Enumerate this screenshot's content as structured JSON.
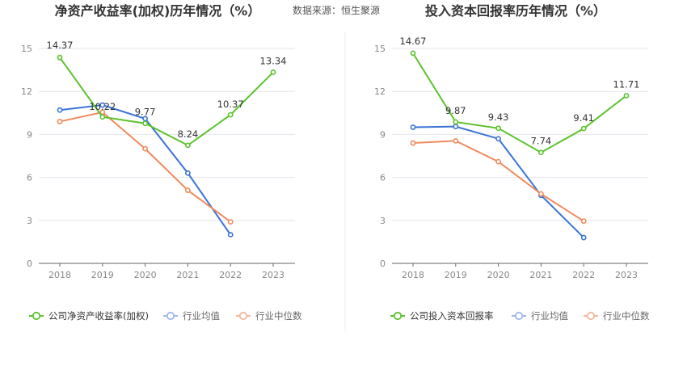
{
  "source_label": "数据来源：恒生聚源",
  "colors": {
    "company": "#5cc22d",
    "avg": "#3b73d6",
    "median": "#ef8a5c",
    "avg_legend": "#9db7ec",
    "median_legend": "#f3b79d",
    "grid": "#e4e6ef",
    "axis": "#666666"
  },
  "chart_data": [
    {
      "type": "line",
      "title": "净资产收益率(加权)历年情况（%）",
      "categories": [
        "2018",
        "2019",
        "2020",
        "2021",
        "2022",
        "2023"
      ],
      "ylim": [
        0,
        15
      ],
      "yticks": [
        0,
        3,
        6,
        9,
        12,
        15
      ],
      "grid": true,
      "legend_position": "bottom",
      "series": [
        {
          "name": "公司净资产收益率(加权)",
          "key": "company",
          "values": [
            14.37,
            10.22,
            9.77,
            8.24,
            10.37,
            13.34
          ],
          "labels": [
            "14.37",
            "10.22",
            "9.77",
            "8.24",
            "10.37",
            "13.34"
          ]
        },
        {
          "name": "行业均值",
          "key": "avg",
          "values": [
            10.7,
            11.05,
            10.1,
            6.3,
            2.0,
            null
          ]
        },
        {
          "name": "行业中位数",
          "key": "median",
          "values": [
            9.9,
            10.55,
            8.0,
            5.1,
            2.9,
            null
          ]
        }
      ]
    },
    {
      "type": "line",
      "title": "投入资本回报率历年情况（%）",
      "categories": [
        "2018",
        "2019",
        "2020",
        "2021",
        "2022",
        "2023"
      ],
      "ylim": [
        0,
        15
      ],
      "yticks": [
        0,
        3,
        6,
        9,
        12,
        15
      ],
      "grid": true,
      "legend_position": "bottom",
      "series": [
        {
          "name": "公司投入资本回报率",
          "key": "company",
          "values": [
            14.67,
            9.87,
            9.43,
            7.74,
            9.41,
            11.71
          ],
          "labels": [
            "14.67",
            "9.87",
            "9.43",
            "7.74",
            "9.41",
            "11.71"
          ]
        },
        {
          "name": "行业均值",
          "key": "avg",
          "values": [
            9.5,
            9.55,
            8.7,
            4.75,
            1.8,
            null
          ]
        },
        {
          "name": "行业中位数",
          "key": "median",
          "values": [
            8.4,
            8.55,
            7.1,
            4.85,
            2.95,
            null
          ]
        }
      ]
    }
  ]
}
